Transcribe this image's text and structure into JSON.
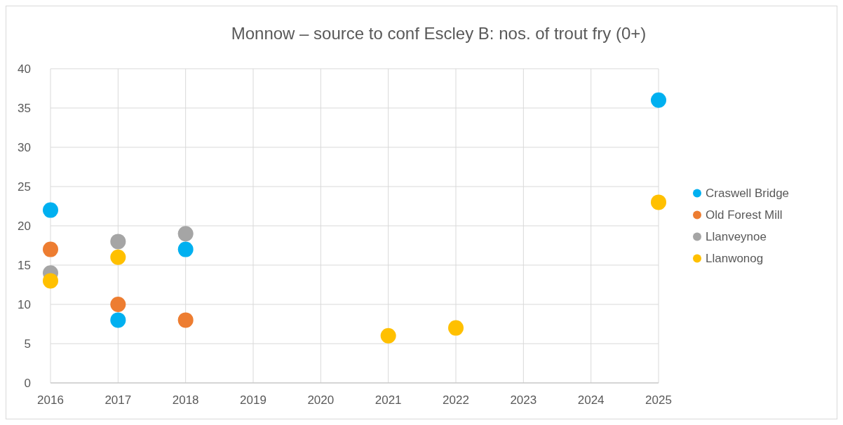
{
  "chart_data": {
    "type": "scatter",
    "title": "Monnow – source to conf Escley B: nos. of trout fry (0+)",
    "xlim": [
      2016,
      2025
    ],
    "xticks": [
      2016,
      2017,
      2018,
      2019,
      2020,
      2021,
      2022,
      2023,
      2024,
      2025
    ],
    "ylim": [
      0,
      40
    ],
    "yticks": [
      0,
      5,
      10,
      15,
      20,
      25,
      30,
      35,
      40
    ],
    "grid": true,
    "legend": "right",
    "marker": "circle",
    "series": [
      {
        "name": "Craswell Bridge",
        "color": "#00b0f0",
        "x": [
          2016,
          2017,
          2018,
          2025
        ],
        "values": [
          22,
          8,
          17,
          36
        ]
      },
      {
        "name": "Old Forest Mill",
        "color": "#ed7d31",
        "x": [
          2016,
          2017,
          2018
        ],
        "values": [
          17,
          10,
          8
        ]
      },
      {
        "name": "Llanveynoe",
        "color": "#a5a5a5",
        "x": [
          2016,
          2017,
          2018
        ],
        "values": [
          14,
          18,
          19
        ]
      },
      {
        "name": "Llanwonog",
        "color": "#ffc000",
        "x": [
          2016,
          2017,
          2021,
          2022,
          2025
        ],
        "values": [
          13,
          16,
          6,
          7,
          23
        ]
      }
    ]
  }
}
